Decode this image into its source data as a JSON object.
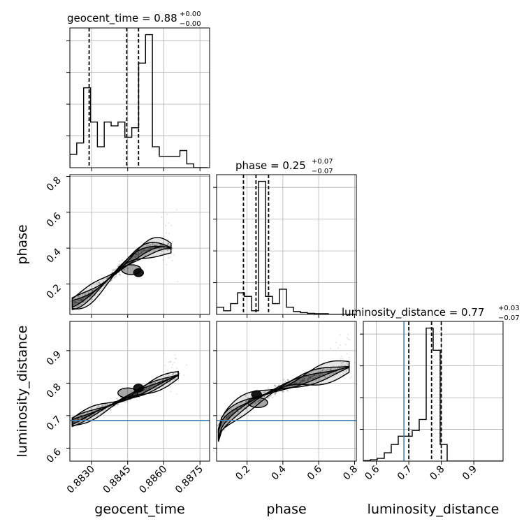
{
  "chart_data": {
    "type": "corner",
    "parameters": [
      {
        "name": "geocent_time",
        "label": "geocent_time",
        "range": [
          0.8821,
          0.8879
        ],
        "ticks": [
          0.883,
          0.8845,
          0.886,
          0.8875
        ],
        "tick_labels": [
          "0.8830",
          "0.8845",
          "0.8860",
          "0.8875"
        ]
      },
      {
        "name": "phase",
        "label": "phase",
        "range": [
          0.03,
          0.81
        ],
        "ticks": [
          0.2,
          0.4,
          0.6,
          0.8
        ],
        "tick_labels": [
          "0.2",
          "0.4",
          "0.6",
          "0.8"
        ]
      },
      {
        "name": "luminosity_distance",
        "label": "luminosity_distance",
        "range": [
          0.56,
          0.99
        ],
        "ticks": [
          0.6,
          0.7,
          0.8,
          0.9
        ],
        "tick_labels": [
          "0.6",
          "0.7",
          "0.8",
          "0.9"
        ]
      }
    ],
    "diag_titles": [
      {
        "param": "geocent_time",
        "prefix": "geocent_time = ",
        "value": "0.88",
        "upper": "+0.00",
        "lower": "−0.00"
      },
      {
        "param": "phase",
        "prefix": "phase = ",
        "value": "0.25",
        "upper": "+0.07",
        "lower": "−0.07"
      },
      {
        "param": "luminosity_distance",
        "prefix": "luminosity_distance = ",
        "value": "0.77",
        "upper": "+0.03",
        "lower": "−0.07"
      }
    ],
    "histograms": [
      {
        "param": "geocent_time",
        "edges_start": 0.8821,
        "bin_width": 0.0002855,
        "counts": [
          7,
          13,
          42,
          24,
          11,
          24,
          22,
          24,
          16,
          21,
          55,
          70,
          11,
          6,
          6,
          6,
          9,
          2,
          0,
          0
        ]
      },
      {
        "param": "phase",
        "edges_start": 0.03,
        "bin_width": 0.039,
        "counts": [
          2,
          1,
          3,
          6,
          5,
          1,
          37,
          5,
          3,
          7,
          2,
          0.8,
          0.5,
          0.3,
          0.2,
          0.2,
          0,
          0,
          0,
          0
        ]
      },
      {
        "param": "luminosity_distance",
        "edges_start": 0.56,
        "bin_width": 0.0215,
        "counts": [
          0.2,
          0.5,
          1,
          3,
          6,
          9,
          9,
          11,
          15,
          48,
          40,
          6,
          0,
          0,
          0,
          0,
          0,
          0,
          0,
          0
        ]
      }
    ],
    "quantiles": {
      "geocent_time": [
        0.8829,
        0.88446,
        0.88495
      ],
      "phase": [
        0.18,
        0.25,
        0.32
      ],
      "luminosity_distance": [
        0.7,
        0.77,
        0.8
      ]
    },
    "truths": {
      "luminosity_distance": 0.685
    },
    "grid": true
  }
}
